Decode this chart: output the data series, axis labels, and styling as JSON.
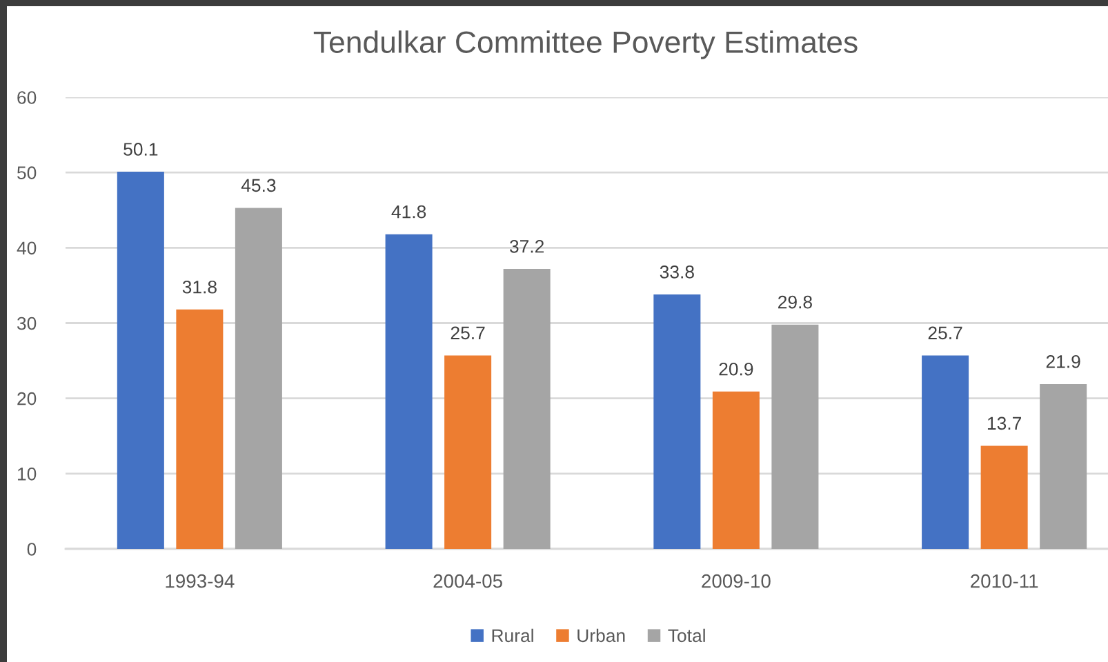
{
  "chart_data": {
    "type": "bar",
    "title": "Tendulkar Committee Poverty Estimates",
    "categories": [
      "1993-94",
      "2004-05",
      "2009-10",
      "2010-11"
    ],
    "series": [
      {
        "name": "Rural",
        "color": "#4472c4",
        "values": [
          50.1,
          41.8,
          33.8,
          25.7
        ]
      },
      {
        "name": "Urban",
        "color": "#ed7d31",
        "values": [
          31.8,
          25.7,
          20.9,
          13.7
        ]
      },
      {
        "name": "Total",
        "color": "#a5a5a5",
        "values": [
          45.3,
          37.2,
          29.8,
          21.9
        ]
      }
    ],
    "ylim": [
      0,
      60
    ],
    "yticks": [
      0,
      10,
      20,
      30,
      40,
      50,
      60
    ],
    "grid": "y",
    "legend": "bottom",
    "data_labels": true
  }
}
